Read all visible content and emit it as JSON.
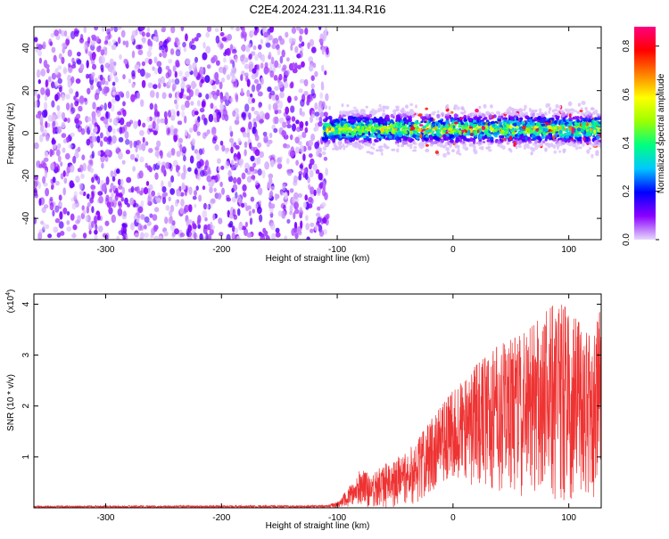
{
  "title": "C2E4.2024.231.11.34.R16",
  "chart_data": [
    {
      "type": "heatmap",
      "title": "C2E4.2024.231.11.34.R16",
      "xlabel": "Height of straight line (km)",
      "ylabel": "Frequency (Hz)",
      "xlim": [
        -362,
        128
      ],
      "ylim": [
        -50,
        50
      ],
      "x_ticks": [
        -300,
        -200,
        -100,
        0,
        100
      ],
      "x_tick_labels": [
        "-300",
        "-200",
        "-100",
        "0",
        "100"
      ],
      "y_ticks": [
        -40,
        -20,
        0,
        20,
        40
      ],
      "y_tick_labels": [
        "-40",
        "-20",
        "0",
        "20",
        "40"
      ],
      "colorbar": {
        "label": "Normalized spectral amplitude",
        "range": [
          0.0,
          0.88
        ],
        "ticks": [
          0.0,
          0.2,
          0.4,
          0.6,
          0.8
        ],
        "tick_labels": [
          "0.0",
          "0.2",
          "0.4",
          "0.6",
          "0.8"
        ],
        "colors": [
          "#e6d9fb",
          "#8b00ff",
          "#0000ff",
          "#00c8ff",
          "#00ff80",
          "#9cff00",
          "#ffff00",
          "#ff8000",
          "#ff0000",
          "#ff0080"
        ]
      },
      "regions": [
        {
          "x_range": [
            -362,
            -112
          ],
          "description": "broadband noise, amplitude 0.0-0.15 across all frequencies"
        },
        {
          "x_range": [
            -112,
            128
          ],
          "center_freq_hz": 2,
          "bandwidth_hz": 10,
          "amplitude_range": [
            0.1,
            0.88
          ]
        }
      ]
    },
    {
      "type": "line",
      "xlabel": "Height of straight line (km)",
      "ylabel": "SNR (10 * v/v)",
      "y_multiplier": "(x10",
      "y_multiplier_exp": "4",
      "y_multiplier_close": ")",
      "xlim": [
        -362,
        128
      ],
      "ylim": [
        0,
        4.2
      ],
      "x_ticks": [
        -300,
        -200,
        -100,
        0,
        100
      ],
      "x_tick_labels": [
        "-300",
        "-200",
        "-100",
        "0",
        "100"
      ],
      "y_ticks": [
        1,
        2,
        3,
        4
      ],
      "y_tick_labels": [
        "1",
        "2",
        "3",
        "4"
      ],
      "series": [
        {
          "name": "SNR",
          "color": "#ee3333",
          "envelope": {
            "x": [
              -362,
              -110,
              -100,
              -90,
              -80,
              -70,
              -60,
              -50,
              -40,
              -30,
              -20,
              -10,
              0,
              10,
              20,
              30,
              40,
              50,
              60,
              70,
              80,
              90,
              100,
              110,
              120,
              128
            ],
            "upper": [
              0.04,
              0.05,
              0.12,
              0.4,
              0.75,
              0.65,
              0.85,
              0.95,
              1.15,
              1.35,
              1.7,
              2.0,
              2.3,
              2.55,
              2.8,
              3.0,
              3.2,
              3.3,
              3.4,
              3.6,
              3.85,
              4.05,
              3.9,
              3.6,
              3.3,
              3.95
            ],
            "lower": [
              0.0,
              0.0,
              0.0,
              0.0,
              0.0,
              0.0,
              0.0,
              0.0,
              0.05,
              0.1,
              0.3,
              0.45,
              0.55,
              0.5,
              0.4,
              0.4,
              0.25,
              0.25,
              0.2,
              0.2,
              0.15,
              0.15,
              0.15,
              0.15,
              0.15,
              0.2
            ]
          }
        }
      ]
    }
  ]
}
